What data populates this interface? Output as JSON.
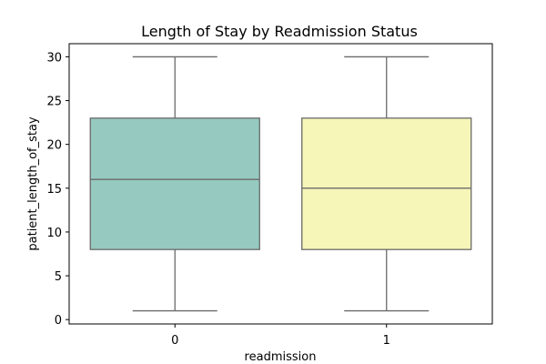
{
  "chart_data": {
    "type": "box",
    "title": "Length of Stay by Readmission Status",
    "xlabel": "readmission",
    "ylabel": "patient_length_of_stay",
    "categories": [
      "0",
      "1"
    ],
    "ylim": [
      -0.5,
      31.5
    ],
    "yticks": [
      0,
      5,
      10,
      15,
      20,
      25,
      30
    ],
    "grid": false,
    "legend": false,
    "boxes": [
      {
        "category": "0",
        "min": 1,
        "q1": 8,
        "median": 16,
        "q3": 23,
        "max": 30,
        "color": "#96c9c0"
      },
      {
        "category": "1",
        "min": 1,
        "q1": 8,
        "median": 15,
        "q3": 23,
        "max": 30,
        "color": "#f6f6b9"
      }
    ],
    "line_color": "#6a6a6a"
  }
}
